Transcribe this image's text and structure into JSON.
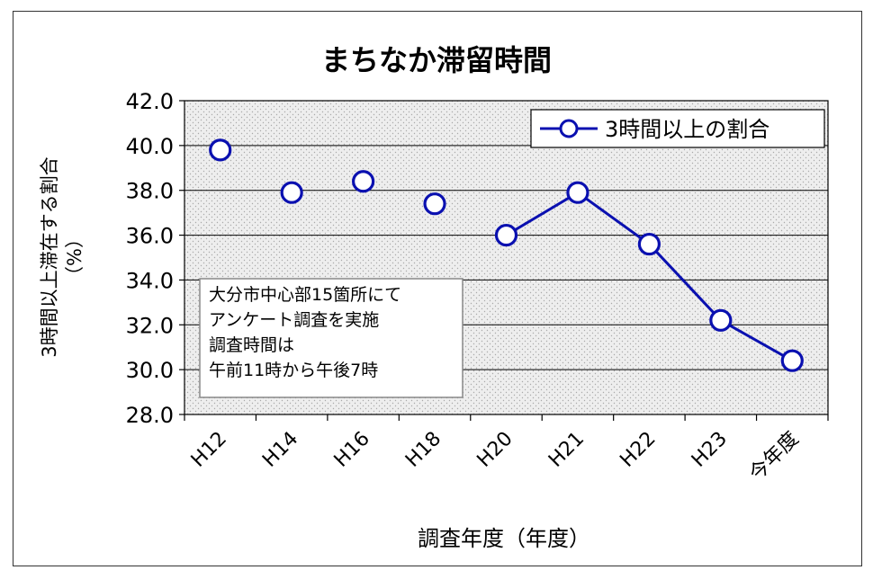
{
  "chart_data": {
    "type": "line",
    "title": "まちなか滞留時間",
    "xlabel": "調査年度（年度）",
    "ylabel": "3時間以上滞在する割合",
    "ylabel_unit": "（%）",
    "ylim": [
      28.0,
      42.0
    ],
    "ytick_step": 2.0,
    "yticks": [
      "42.0",
      "40.0",
      "38.0",
      "36.0",
      "34.0",
      "32.0",
      "30.0",
      "28.0"
    ],
    "categories": [
      "H12",
      "H14",
      "H16",
      "H18",
      "H20",
      "H21",
      "H22",
      "H23",
      "今年度"
    ],
    "grid": true,
    "legend_position": "top-right",
    "series": [
      {
        "name": "3時間以上の割合",
        "color": "#0a10b0",
        "values": [
          39.8,
          37.9,
          38.4,
          37.4,
          36.0,
          37.9,
          35.6,
          32.2,
          30.4
        ],
        "connected_from_index": 4
      }
    ],
    "annotation": [
      "大分市中心部15箇所にて",
      "アンケート調査を実施",
      "調査時間は",
      "午前11時から午後7時"
    ]
  }
}
